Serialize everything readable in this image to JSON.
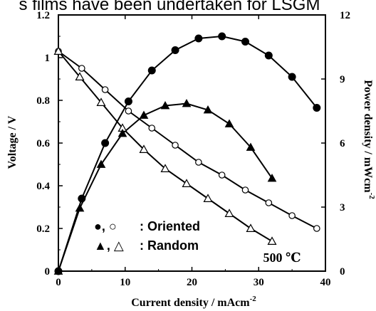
{
  "header_text": "s films have been undertaken for LSGM",
  "chart_data": {
    "type": "line",
    "xlabel": "Current density / mAcm",
    "xlabel_superscript": "-2",
    "ylabel_left": "Voltage / V",
    "ylabel_right": "Power density / mWcm",
    "ylabel_right_superscript": "-2",
    "temperature_label": "500 ℃",
    "legend": [
      {
        "symbols": "●, ○",
        "label": ": Oriented"
      },
      {
        "symbols": "▲, △",
        "label": ": Random"
      }
    ],
    "xlim": [
      0,
      40
    ],
    "ylim_left": [
      0,
      1.2
    ],
    "ylim_right": [
      0,
      12
    ],
    "x_ticks": [
      "0",
      "10",
      "20",
      "30",
      "40"
    ],
    "y_left_ticks": [
      "0",
      "0.2",
      "0.4",
      "0.6",
      "0.8",
      "1",
      "1.2"
    ],
    "y_right_ticks": [
      "0",
      "3",
      "6",
      "9",
      "12"
    ],
    "series": [
      {
        "name": "Oriented",
        "axis": "left",
        "marker": "circle-open",
        "x": [
          0,
          3.5,
          7,
          10.5,
          14,
          17.5,
          21,
          24.5,
          28,
          31.5,
          35,
          38.7
        ],
        "y": [
          1.03,
          0.95,
          0.85,
          0.75,
          0.67,
          0.59,
          0.51,
          0.45,
          0.38,
          0.32,
          0.26,
          0.2
        ]
      },
      {
        "name": "Random",
        "axis": "left",
        "marker": "triangle-open",
        "x": [
          0,
          3.2,
          6.4,
          9.6,
          12.8,
          16,
          19.2,
          22.4,
          25.6,
          28.8,
          32
        ],
        "y": [
          1.03,
          0.91,
          0.79,
          0.67,
          0.57,
          0.48,
          0.41,
          0.34,
          0.27,
          0.2,
          0.14
        ]
      },
      {
        "name": "Oriented",
        "axis": "right",
        "marker": "circle-filled",
        "x": [
          0,
          3.5,
          7,
          10.5,
          14,
          17.5,
          21,
          24.5,
          28,
          31.5,
          35,
          38.7
        ],
        "y": [
          0,
          3.4,
          6.0,
          7.95,
          9.4,
          10.35,
          10.9,
          11.0,
          10.75,
          10.1,
          9.1,
          7.65
        ]
      },
      {
        "name": "Random",
        "axis": "right",
        "marker": "triangle-filled",
        "x": [
          0,
          3.2,
          6.4,
          9.6,
          12.8,
          16,
          19.2,
          22.4,
          25.6,
          28.8,
          32
        ],
        "y": [
          0,
          2.95,
          5.0,
          6.45,
          7.3,
          7.75,
          7.85,
          7.55,
          6.9,
          5.8,
          4.35
        ]
      }
    ]
  }
}
